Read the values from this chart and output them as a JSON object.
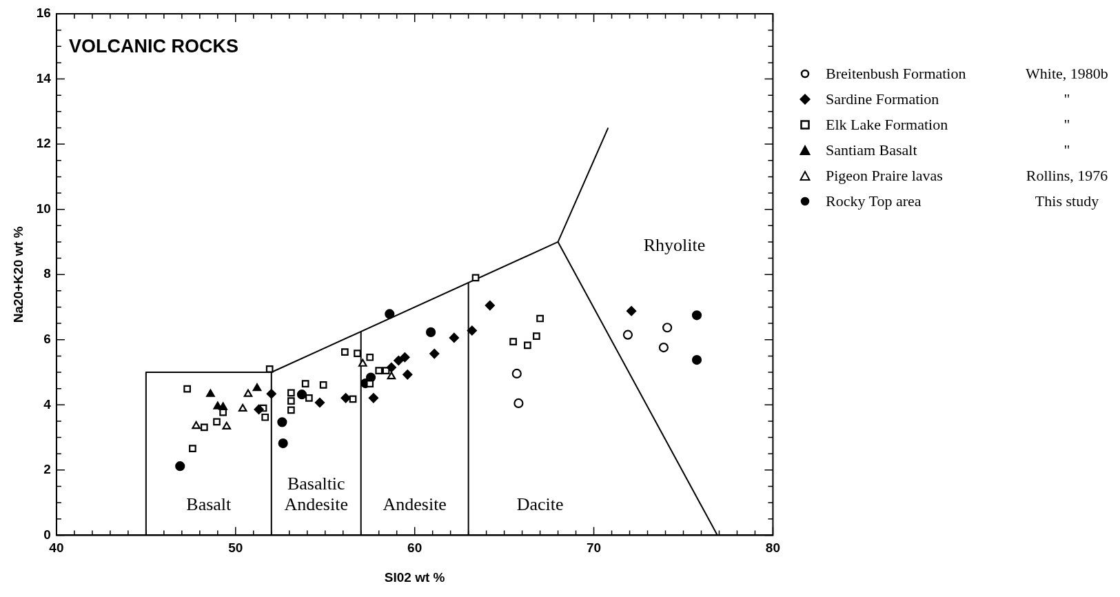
{
  "chart_data": {
    "type": "scatter",
    "title": "VOLCANIC ROCKS",
    "xlabel": "SI02 wt %",
    "ylabel": "Na20+K20 wt %",
    "xlim": [
      40,
      80
    ],
    "xticks": [
      40,
      {
        "value": 41,
        "label": null
      },
      {
        "value": 42,
        "label": null
      },
      {
        "value": 43,
        "label": null
      },
      {
        "value": 44,
        "label": null
      },
      {
        "value": 45,
        "label": null
      },
      {
        "value": 46,
        "label": null
      },
      {
        "value": 47,
        "label": null
      },
      {
        "value": 48,
        "label": null
      },
      {
        "value": 49,
        "label": null
      },
      50,
      {
        "value": 51,
        "label": null
      },
      {
        "value": 52,
        "label": null
      },
      {
        "value": 53,
        "label": null
      },
      {
        "value": 54,
        "label": null
      },
      {
        "value": 55,
        "label": null
      },
      {
        "value": 56,
        "label": null
      },
      {
        "value": 57,
        "label": null
      },
      {
        "value": 58,
        "label": null
      },
      {
        "value": 59,
        "label": null
      },
      60,
      {
        "value": 61,
        "label": null
      },
      {
        "value": 62,
        "label": null
      },
      {
        "value": 63,
        "label": null
      },
      {
        "value": 64,
        "label": null
      },
      {
        "value": 65,
        "label": null
      },
      {
        "value": 66,
        "label": null
      },
      {
        "value": 67,
        "label": null
      },
      {
        "value": 68,
        "label": null
      },
      {
        "value": 69,
        "label": null
      },
      70,
      {
        "value": 71,
        "label": null
      },
      {
        "value": 72,
        "label": null
      },
      {
        "value": 73,
        "label": null
      },
      {
        "value": 74,
        "label": null
      },
      {
        "value": 75,
        "label": null
      },
      {
        "value": 76,
        "label": null
      },
      {
        "value": 77,
        "label": null
      },
      {
        "value": 78,
        "label": null
      },
      {
        "value": 79,
        "label": null
      },
      80
    ],
    "ylim": [
      0,
      16
    ],
    "yticks": [
      0,
      {
        "value": 0.5,
        "label": null
      },
      {
        "value": 1,
        "label": null
      },
      {
        "value": 1.5,
        "label": null
      },
      2,
      {
        "value": 2.5,
        "label": null
      },
      {
        "value": 3,
        "label": null
      },
      {
        "value": 3.5,
        "label": null
      },
      4,
      {
        "value": 4.5,
        "label": null
      },
      {
        "value": 5,
        "label": null
      },
      {
        "value": 5.5,
        "label": null
      },
      6,
      {
        "value": 6.5,
        "label": null
      },
      {
        "value": 7,
        "label": null
      },
      {
        "value": 7.5,
        "label": null
      },
      8,
      {
        "value": 8.5,
        "label": null
      },
      {
        "value": 9,
        "label": null
      },
      {
        "value": 9.5,
        "label": null
      },
      10,
      {
        "value": 10.5,
        "label": null
      },
      {
        "value": 11,
        "label": null
      },
      {
        "value": 11.5,
        "label": null
      },
      12,
      {
        "value": 12.5,
        "label": null
      },
      {
        "value": 13,
        "label": null
      },
      {
        "value": 13.5,
        "label": null
      },
      14,
      {
        "value": 14.5,
        "label": null
      },
      {
        "value": 15,
        "label": null
      },
      {
        "value": 15.5,
        "label": null
      },
      16
    ],
    "legend": "right",
    "series": [
      {
        "name": "Breitenbush Formation",
        "marker": "circle",
        "color": "#ffffff",
        "x": [
          65.7,
          65.8,
          71.9,
          74.1,
          73.9
        ],
        "values": [
          4.96,
          4.05,
          6.15,
          6.37,
          5.76
        ]
      },
      {
        "name": "Sardine Formation",
        "marker": "diamond",
        "color": "#000000",
        "x": [
          52.0,
          54.7,
          51.3,
          56.15,
          64.2,
          63.2,
          62.2,
          61.1,
          59.6,
          59.45,
          59.1,
          57.7,
          58.7,
          72.1
        ],
        "values": [
          4.34,
          4.07,
          3.86,
          4.21,
          7.05,
          6.28,
          6.06,
          5.57,
          4.93,
          5.46,
          5.36,
          4.21,
          5.15,
          6.88
        ]
      },
      {
        "name": "Elk Lake Formation",
        "marker": "square",
        "color": "#ffffff",
        "x": [
          47.3,
          47.6,
          51.9,
          56.1,
          56.8,
          57.5,
          58.0,
          53.9,
          54.9,
          53.1,
          54.1,
          53.1,
          53.1,
          51.55,
          51.65,
          49.3,
          48.95,
          48.25,
          58.4,
          57.5,
          56.55,
          67.0,
          66.8,
          66.3,
          65.5,
          63.4
        ],
        "values": [
          4.49,
          2.66,
          5.1,
          5.62,
          5.58,
          5.46,
          5.05,
          4.65,
          4.61,
          4.37,
          4.21,
          4.12,
          3.84,
          3.9,
          3.62,
          3.77,
          3.48,
          3.31,
          5.05,
          4.65,
          4.18,
          6.65,
          6.11,
          5.83,
          5.94,
          7.9
        ]
      },
      {
        "name": "Santiam Basalt",
        "marker": "triangle",
        "color": "#000000",
        "x": [
          48.6,
          49.0,
          49.3,
          51.2
        ],
        "values": [
          4.33,
          3.95,
          3.93,
          4.51
        ]
      },
      {
        "name": "Pigeon Praire lavas",
        "marker": "triangle",
        "color": "#ffffff",
        "x": [
          50.7,
          50.4,
          47.8,
          49.5,
          57.1,
          58.7
        ],
        "values": [
          4.33,
          3.88,
          3.35,
          3.33,
          5.26,
          4.87
        ]
      },
      {
        "name": "Rocky Top area",
        "marker": "circle",
        "color": "#000000",
        "x": [
          46.9,
          52.6,
          52.65,
          53.7,
          57.25,
          58.6,
          60.9,
          57.55,
          75.75,
          75.75
        ],
        "values": [
          2.12,
          3.47,
          2.82,
          4.32,
          4.66,
          6.79,
          6.23,
          4.84,
          6.75,
          5.38
        ]
      },
      {
        "type": "line",
        "marker": "none",
        "color": "#000000",
        "x": [
          45,
          45,
          52,
          68,
          70.8
        ],
        "values": [
          0,
          5,
          5,
          9,
          12.5
        ]
      },
      {
        "type": "line",
        "marker": "none",
        "color": "#000000",
        "x": [
          68,
          76.9
        ],
        "values": [
          9,
          0
        ]
      },
      {
        "type": "line",
        "marker": "none",
        "color": "#000000",
        "x": [
          52,
          52
        ],
        "values": [
          0,
          5
        ]
      },
      {
        "type": "line",
        "marker": "none",
        "color": "#000000",
        "x": [
          57,
          57
        ],
        "values": [
          0,
          6.25
        ]
      },
      {
        "type": "line",
        "marker": "none",
        "color": "#000000",
        "x": [
          63,
          63
        ],
        "values": [
          0,
          7.75
        ]
      }
    ],
    "annotations": [
      "White, 1980b",
      "\"",
      "\"",
      "\"",
      "Rollins, 1976",
      "This study",
      "Basalt",
      "Basaltic\nAndesite",
      "Andesite",
      "Dacite",
      "Rhyolite"
    ]
  }
}
